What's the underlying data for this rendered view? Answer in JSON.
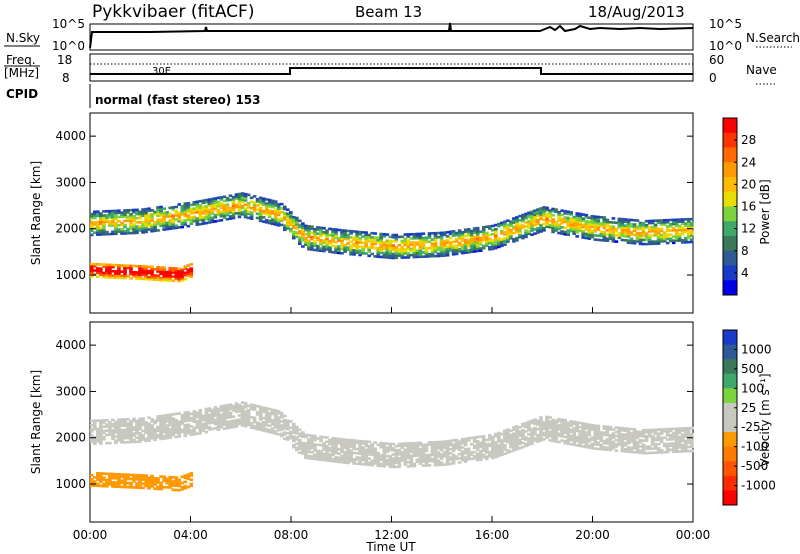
{
  "header": {
    "title": "Pykkvibaer (fitACF)",
    "beam": "Beam 13",
    "date": "18/Aug/2013"
  },
  "status_panels": {
    "nsky_label": "N.Sky",
    "nsky_ticks": [
      "10^5",
      "10^0"
    ],
    "nsearch_label": "N.Search",
    "nsearch_ticks": [
      "10^5",
      "10^0"
    ],
    "freq_label": "Freq.",
    "freq_unit": "[MHz]",
    "freq_ticks": [
      "18",
      "8"
    ],
    "nave_label": "Nave",
    "nave_ticks": [
      "60",
      "0"
    ],
    "cpid_label": "CPID",
    "cpid_text": "normal (fast stereo) 153",
    "small_annotation": "30E"
  },
  "power_colorbar": {
    "label": "Power [dB]",
    "ticks": [
      "28",
      "24",
      "20",
      "16",
      "12",
      "8",
      "4"
    ],
    "colors": [
      "#ff0000",
      "#ff3300",
      "#ff6a00",
      "#ff9900",
      "#ffbb00",
      "#e8dd00",
      "#7cd33b",
      "#40a868",
      "#3a7a5a",
      "#2f5a96",
      "#1a3ac8",
      "#0000e8"
    ]
  },
  "velocity_colorbar": {
    "label": "Velocity [m s⁻¹]",
    "ticks": [
      "1000",
      "500",
      "100",
      "25",
      "-25",
      "-100",
      "-500",
      "-1000"
    ],
    "colors": [
      "#1a3ac8",
      "#2f5a96",
      "#3a7a5a",
      "#40a868",
      "#7cd33b",
      "#c8c8c0",
      "#c8c8c0",
      "#ff9900",
      "#ff7a00",
      "#ff5500",
      "#ff2a00",
      "#ff0000"
    ]
  },
  "chart_data": [
    {
      "type": "heatmap",
      "title": "",
      "quantity": "Power",
      "xlabel": "",
      "ylabel": "Slant Range [km]",
      "xlim": [
        "00:00",
        "24:00"
      ],
      "ylim": [
        180,
        4500
      ],
      "x_ticks": [
        "00:00",
        "04:00",
        "08:00",
        "12:00",
        "16:00",
        "20:00",
        "00:00"
      ],
      "y_ticks": [
        1000,
        2000,
        3000,
        4000
      ],
      "bands": [
        {
          "points": [
            [
              0,
              2100
            ],
            [
              2,
              2150
            ],
            [
              4,
              2300
            ],
            [
              6,
              2500
            ],
            [
              7.5,
              2300
            ],
            [
              8.5,
              1800
            ],
            [
              10,
              1700
            ],
            [
              12,
              1600
            ],
            [
              14,
              1650
            ],
            [
              16,
              1800
            ],
            [
              17.5,
              2100
            ],
            [
              18,
              2200
            ],
            [
              20,
              2000
            ],
            [
              22,
              1900
            ],
            [
              24,
              1950
            ]
          ],
          "width_km": 500,
          "level_db": 14
        },
        {
          "points": [
            [
              0,
              1100
            ],
            [
              2,
              1050
            ],
            [
              3.5,
              1000
            ],
            [
              4,
              1100
            ]
          ],
          "width_km": 300,
          "level_db": 28
        }
      ]
    },
    {
      "type": "heatmap",
      "title": "",
      "quantity": "Velocity",
      "xlabel": "Time UT",
      "ylabel": "Slant Range [km]",
      "xlim": [
        "00:00",
        "24:00"
      ],
      "ylim": [
        180,
        4500
      ],
      "x_ticks": [
        "00:00",
        "04:00",
        "08:00",
        "12:00",
        "16:00",
        "20:00",
        "00:00"
      ],
      "y_ticks": [
        1000,
        2000,
        3000,
        4000
      ],
      "bands": [
        {
          "points": [
            [
              0,
              2100
            ],
            [
              2,
              2150
            ],
            [
              4,
              2300
            ],
            [
              6,
              2500
            ],
            [
              7.5,
              2300
            ],
            [
              8.5,
              1800
            ],
            [
              10,
              1700
            ],
            [
              12,
              1600
            ],
            [
              14,
              1650
            ],
            [
              16,
              1800
            ],
            [
              17.5,
              2100
            ],
            [
              18,
              2200
            ],
            [
              20,
              2000
            ],
            [
              22,
              1900
            ],
            [
              24,
              1950
            ]
          ],
          "width_km": 500,
          "level_ms": 0
        },
        {
          "points": [
            [
              0,
              1100
            ],
            [
              2,
              1050
            ],
            [
              3.5,
              1000
            ],
            [
              4,
              1100
            ]
          ],
          "width_km": 300,
          "level_ms": -200
        }
      ]
    }
  ]
}
